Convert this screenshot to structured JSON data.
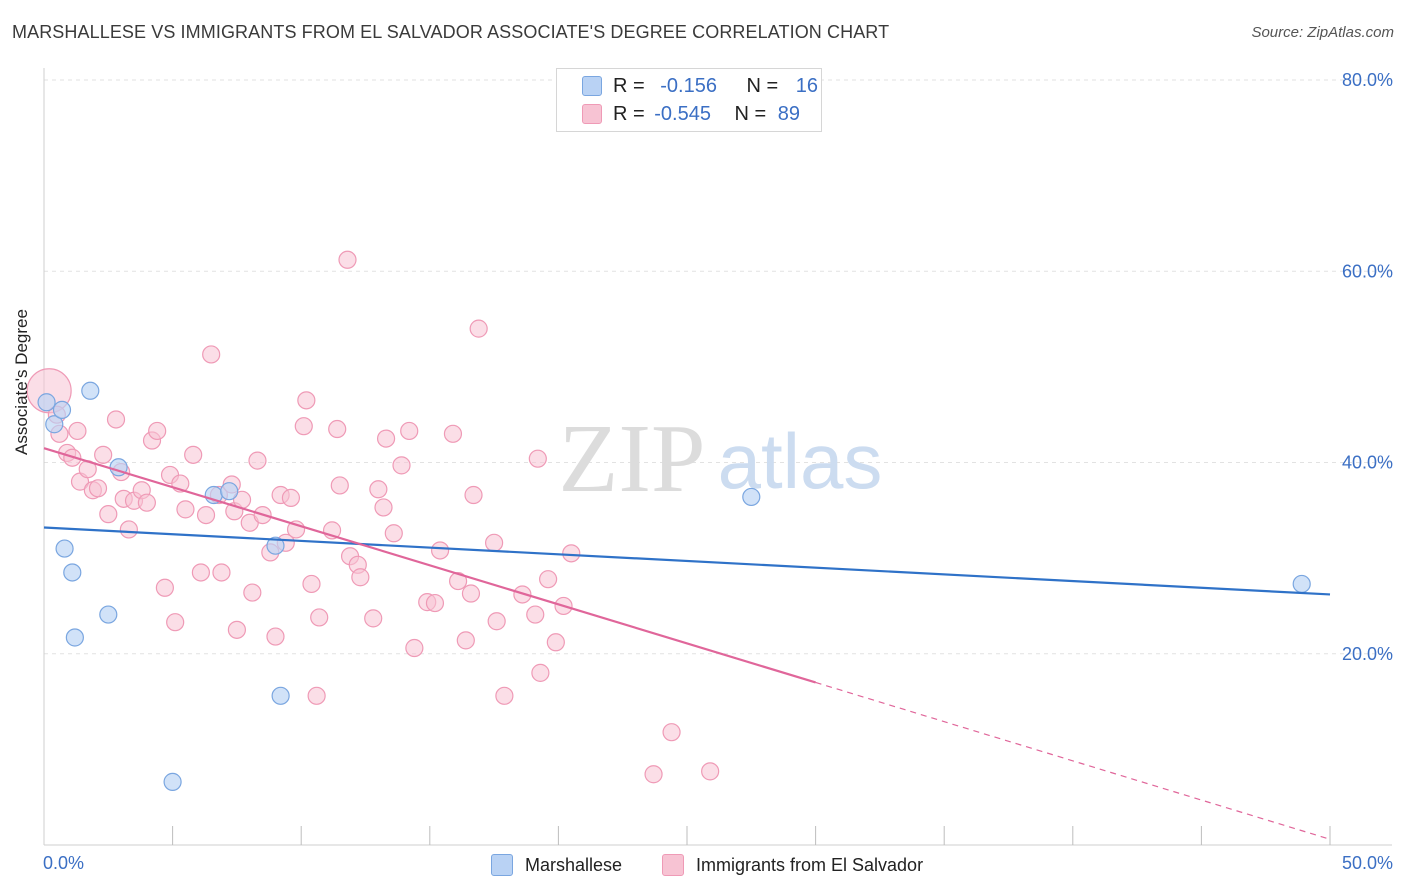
{
  "title": "MARSHALLESE VS IMMIGRANTS FROM EL SALVADOR ASSOCIATE'S DEGREE CORRELATION CHART",
  "source": "Source: ZipAtlas.com",
  "watermark": {
    "zip": "ZIP",
    "atlas": "atlas"
  },
  "legend_top": {
    "rows": [
      {
        "r_label": "R =",
        "r_value": "-0.156",
        "n_label": "N =",
        "n_value": "16"
      },
      {
        "r_label": "R =",
        "r_value": "-0.545",
        "n_label": "N =",
        "n_value": "89"
      }
    ]
  },
  "colors": {
    "marshallese_fill": "#b9d2f4",
    "marshallese_stroke": "#7aa6e0",
    "marshallese_line": "#2f72c8",
    "elsalvador_fill": "#f7c3d3",
    "elsalvador_stroke": "#ef9ab6",
    "elsalvador_line": "#e0669a",
    "axis_label": "#3b6fc4",
    "grid": "#e2e2e2"
  },
  "chart_data": {
    "type": "scatter",
    "title": "MARSHALLESE VS IMMIGRANTS FROM EL SALVADOR ASSOCIATE'S DEGREE CORRELATION CHART",
    "xlabel": "",
    "ylabel": "Associate's Degree",
    "xlim": [
      0,
      50
    ],
    "ylim": [
      0,
      80
    ],
    "x_tick_labels": [
      "0.0%",
      "50.0%"
    ],
    "y_ticks": [
      20,
      40,
      60,
      80
    ],
    "y_tick_labels": [
      "20.0%",
      "40.0%",
      "60.0%",
      "80.0%"
    ],
    "grid": true,
    "legend_position": "bottom",
    "series": [
      {
        "name": "Marshallese",
        "r": -0.156,
        "n": 16,
        "trend": {
          "x0": 0,
          "y0": 33.2,
          "x1": 50,
          "y1": 26.2
        },
        "points": [
          [
            0.1,
            46.3
          ],
          [
            0.4,
            44.0
          ],
          [
            0.7,
            45.5
          ],
          [
            1.8,
            47.5
          ],
          [
            2.9,
            39.5
          ],
          [
            6.6,
            36.6
          ],
          [
            7.2,
            37.0
          ],
          [
            9.0,
            31.3
          ],
          [
            0.8,
            31.0
          ],
          [
            1.1,
            28.5
          ],
          [
            1.2,
            21.7
          ],
          [
            2.5,
            24.1
          ],
          [
            9.2,
            15.6
          ],
          [
            5.0,
            6.6
          ],
          [
            27.5,
            36.4
          ],
          [
            48.9,
            27.3
          ]
        ]
      },
      {
        "name": "Immigrants from El Salvador",
        "r": -0.545,
        "n": 89,
        "trend": {
          "x0": 0,
          "y0": 41.5,
          "x1": 30,
          "y1": 17.0,
          "dash_x1": 50,
          "dash_y1": 0.6
        },
        "points": [
          [
            0.2,
            47.5
          ],
          [
            0.6,
            43.0
          ],
          [
            0.9,
            41.0
          ],
          [
            1.1,
            40.5
          ],
          [
            1.3,
            43.3
          ],
          [
            1.4,
            38.0
          ],
          [
            1.7,
            39.3
          ],
          [
            1.9,
            37.1
          ],
          [
            2.1,
            37.3
          ],
          [
            2.3,
            40.8
          ],
          [
            2.5,
            34.6
          ],
          [
            2.8,
            44.5
          ],
          [
            3.1,
            36.2
          ],
          [
            3.3,
            33.0
          ],
          [
            3.5,
            36.0
          ],
          [
            3.8,
            37.1
          ],
          [
            4.0,
            35.8
          ],
          [
            4.2,
            42.3
          ],
          [
            4.4,
            43.3
          ],
          [
            4.7,
            26.9
          ],
          [
            4.9,
            38.7
          ],
          [
            5.1,
            23.3
          ],
          [
            5.3,
            37.8
          ],
          [
            5.5,
            35.1
          ],
          [
            5.8,
            40.8
          ],
          [
            6.1,
            28.5
          ],
          [
            6.3,
            34.5
          ],
          [
            6.5,
            51.3
          ],
          [
            6.8,
            36.6
          ],
          [
            6.9,
            28.5
          ],
          [
            7.3,
            37.7
          ],
          [
            7.4,
            34.9
          ],
          [
            7.5,
            22.5
          ],
          [
            7.7,
            36.1
          ],
          [
            8.0,
            33.7
          ],
          [
            8.1,
            26.4
          ],
          [
            8.3,
            40.2
          ],
          [
            8.5,
            34.5
          ],
          [
            8.8,
            30.6
          ],
          [
            9.0,
            21.8
          ],
          [
            9.2,
            36.6
          ],
          [
            9.4,
            31.6
          ],
          [
            9.6,
            36.3
          ],
          [
            9.8,
            33.0
          ],
          [
            10.1,
            43.8
          ],
          [
            10.2,
            46.5
          ],
          [
            10.4,
            27.3
          ],
          [
            10.6,
            15.6
          ],
          [
            10.7,
            23.8
          ],
          [
            11.2,
            32.9
          ],
          [
            11.4,
            43.5
          ],
          [
            11.5,
            37.6
          ],
          [
            11.8,
            61.2
          ],
          [
            11.9,
            30.2
          ],
          [
            12.2,
            29.3
          ],
          [
            12.3,
            28.0
          ],
          [
            12.8,
            23.7
          ],
          [
            13.0,
            37.2
          ],
          [
            13.2,
            35.3
          ],
          [
            13.3,
            42.5
          ],
          [
            13.6,
            32.6
          ],
          [
            13.9,
            39.7
          ],
          [
            14.2,
            43.3
          ],
          [
            14.4,
            20.6
          ],
          [
            14.9,
            25.4
          ],
          [
            15.2,
            25.3
          ],
          [
            15.4,
            30.8
          ],
          [
            15.9,
            43.0
          ],
          [
            16.1,
            27.6
          ],
          [
            16.4,
            21.4
          ],
          [
            16.6,
            26.3
          ],
          [
            16.7,
            36.6
          ],
          [
            16.9,
            54.0
          ],
          [
            17.5,
            31.6
          ],
          [
            17.6,
            23.4
          ],
          [
            17.9,
            15.6
          ],
          [
            18.6,
            26.2
          ],
          [
            19.1,
            24.1
          ],
          [
            19.2,
            40.4
          ],
          [
            19.3,
            18.0
          ],
          [
            19.6,
            27.8
          ],
          [
            19.9,
            21.2
          ],
          [
            20.2,
            25.0
          ],
          [
            20.5,
            30.5
          ],
          [
            23.7,
            7.4
          ],
          [
            24.4,
            11.8
          ],
          [
            25.9,
            7.7
          ],
          [
            0.5,
            45.0
          ],
          [
            3.0,
            39.0
          ]
        ]
      }
    ]
  }
}
